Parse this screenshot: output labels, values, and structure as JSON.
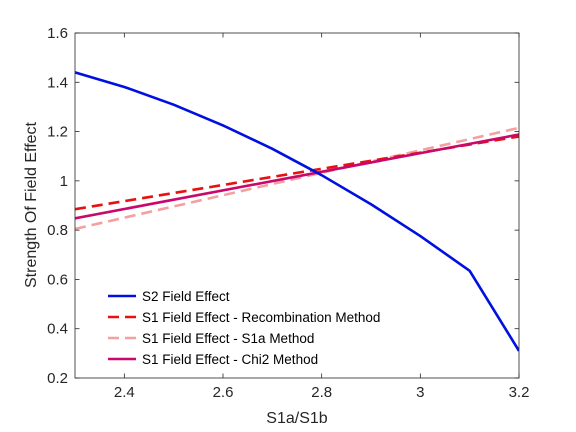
{
  "chart_data": {
    "type": "line",
    "title": "",
    "xlabel": "S1a/S1b",
    "ylabel": "Strength Of Field Effect",
    "xlim": [
      2.3,
      3.2
    ],
    "ylim": [
      0.2,
      1.6
    ],
    "xticks": [
      2.4,
      2.6,
      2.8,
      3,
      3.2
    ],
    "xtick_labels": [
      "2.4",
      "2.6",
      "2.8",
      "3",
      "3.2"
    ],
    "yticks": [
      0.2,
      0.4,
      0.6,
      0.8,
      1,
      1.2,
      1.4,
      1.6
    ],
    "ytick_labels": [
      "0.2",
      "0.4",
      "0.6",
      "0.8",
      "1",
      "1.2",
      "1.4",
      "1.6"
    ],
    "grid": false,
    "legend_position": "bottom-left",
    "series": [
      {
        "name": "S2 Field Effect",
        "color": "#0010e0",
        "style": "solid",
        "x": [
          2.3,
          2.4,
          2.5,
          2.6,
          2.7,
          2.8,
          2.9,
          3.0,
          3.1,
          3.2
        ],
        "y": [
          1.44,
          1.381,
          1.309,
          1.225,
          1.13,
          1.023,
          0.905,
          0.776,
          0.635,
          0.31
        ]
      },
      {
        "name": "S1 Field Effect - Recombination Method",
        "color": "#e81010",
        "style": "dashed",
        "x": [
          2.3,
          3.2
        ],
        "y": [
          0.885,
          1.18
        ]
      },
      {
        "name": "S1 Field Effect - S1a Method",
        "color": "#f4a0a0",
        "style": "dashed",
        "x": [
          2.3,
          3.2
        ],
        "y": [
          0.805,
          1.215
        ]
      },
      {
        "name": "S1 Field Effect - Chi2 Method",
        "color": "#c8086a",
        "style": "solid",
        "x": [
          2.3,
          3.2
        ],
        "y": [
          0.848,
          1.188
        ]
      }
    ]
  }
}
